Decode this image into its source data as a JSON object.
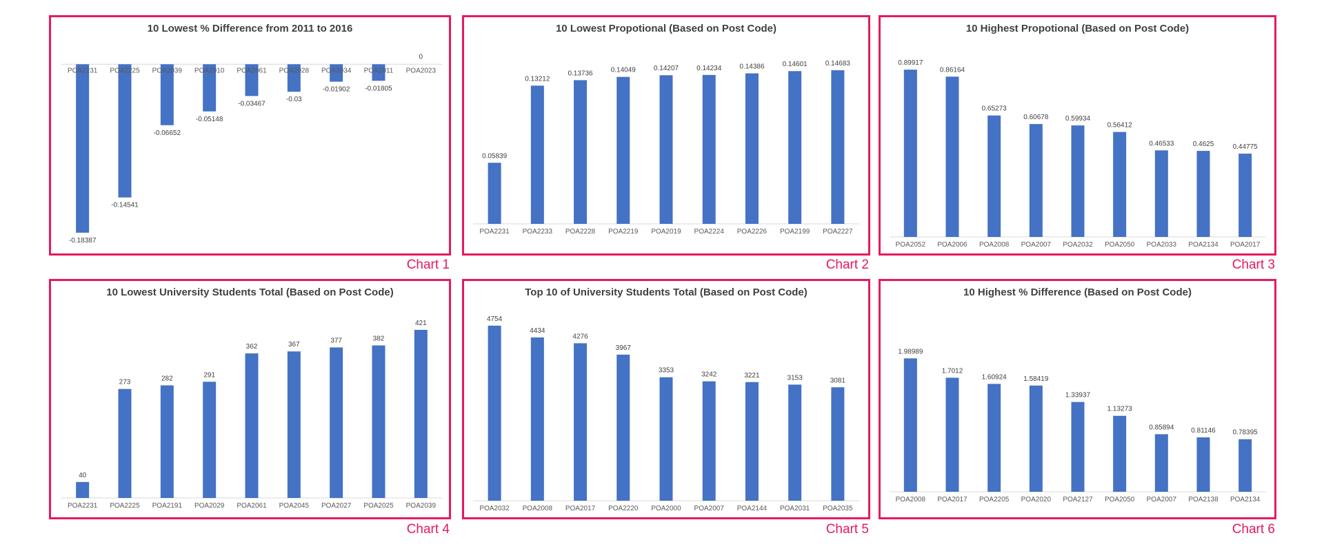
{
  "colors": {
    "bar": "#4472c4",
    "frame": "#e8195a",
    "text": "#404040",
    "axis": "#d9d9d9"
  },
  "chart_data": [
    {
      "label": "Chart 1",
      "type": "bar",
      "title": "10 Lowest % Difference from 2011 to 2016",
      "categories": [
        "POA2231",
        "POA2225",
        "POA2039",
        "POA2010",
        "POA2061",
        "POA2028",
        "POA2034",
        "POA2011",
        "POA2023"
      ],
      "values": [
        -0.18387,
        -0.14541,
        -0.06652,
        -0.05148,
        -0.03467,
        -0.03,
        -0.01902,
        -0.01805,
        0
      ],
      "value_labels": [
        "-0.18387",
        "-0.14541",
        "-0.06652",
        "-0.05148",
        "-0.03467",
        "-0.03",
        "-0.01902",
        "-0.01805",
        "0"
      ],
      "ylim": [
        -0.19,
        0.01
      ],
      "grid": false
    },
    {
      "label": "Chart 2",
      "type": "bar",
      "title": "10 Lowest Propotional (Based on Post Code)",
      "categories": [
        "POA2231",
        "POA2233",
        "POA2228",
        "POA2219",
        "POA2019",
        "POA2224",
        "POA2226",
        "POA2199",
        "POA2227"
      ],
      "values": [
        0.05839,
        0.13212,
        0.13736,
        0.14049,
        0.14207,
        0.14234,
        0.14386,
        0.14601,
        0.14683
      ],
      "value_labels": [
        "0.05839",
        "0.13212",
        "0.13736",
        "0.14049",
        "0.14207",
        "0.14234",
        "0.14386",
        "0.14601",
        "0.14683"
      ],
      "ylim": [
        0,
        0.16
      ],
      "grid": false
    },
    {
      "label": "Chart 3",
      "type": "bar",
      "title": "10 Highest Propotional (Based on Post Code)",
      "categories": [
        "POA2052",
        "POA2006",
        "POA2008",
        "POA2007",
        "POA2032",
        "POA2050",
        "POA2033",
        "POA2134",
        "POA2017"
      ],
      "values": [
        0.89917,
        0.86164,
        0.65273,
        0.60678,
        0.59934,
        0.56412,
        0.46533,
        0.4625,
        0.44775
      ],
      "value_labels": [
        "0.89917",
        "0.86164",
        "0.65273",
        "0.60678",
        "0.59934",
        "0.56412",
        "0.46533",
        "0.4625",
        "0.44775"
      ],
      "ylim": [
        0,
        0.97
      ],
      "grid": false
    },
    {
      "label": "Chart 4",
      "type": "bar",
      "title": "10 Lowest University Students Total (Based on Post Code)",
      "categories": [
        "POA2231",
        "POA2225",
        "POA2191",
        "POA2029",
        "POA2061",
        "POA2045",
        "POA2027",
        "POA2025",
        "POA2039"
      ],
      "values": [
        40,
        273,
        282,
        291,
        362,
        367,
        377,
        382,
        421
      ],
      "value_labels": [
        "40",
        "273",
        "282",
        "291",
        "362",
        "367",
        "377",
        "382",
        "421"
      ],
      "ylim": [
        0,
        445
      ],
      "grid": false
    },
    {
      "label": "Chart 5",
      "type": "bar",
      "title": "Top 10 of University Students Total (Based on Post Code)",
      "categories": [
        "POA2032",
        "POA2008",
        "POA2017",
        "POA2220",
        "POA2000",
        "POA2007",
        "POA2144",
        "POA2031",
        "POA2035"
      ],
      "values": [
        4754,
        4434,
        4276,
        3967,
        3353,
        3242,
        3221,
        3153,
        3081
      ],
      "value_labels": [
        "4754",
        "4434",
        "4276",
        "3967",
        "3353",
        "3242",
        "3221",
        "3153",
        "3081"
      ],
      "ylim": [
        0,
        4900
      ],
      "grid": false
    },
    {
      "label": "Chart 6",
      "type": "bar",
      "title": "10 Highest % Difference (Based on Post Code)",
      "categories": [
        "POA2008",
        "POA2017",
        "POA2205",
        "POA2020",
        "POA2127",
        "POA2050",
        "POA2007",
        "POA2138",
        "POA2134"
      ],
      "values": [
        1.98989,
        1.7012,
        1.60924,
        1.58419,
        1.33937,
        1.13273,
        0.85894,
        0.81146,
        0.78395
      ],
      "value_labels": [
        "1.98989",
        "1.7012",
        "1.60924",
        "1.58419",
        "1.33937",
        "1.13273",
        "0.85894",
        "0.81146",
        "0.78395"
      ],
      "ylim": [
        0,
        2.25
      ],
      "grid": false
    }
  ]
}
